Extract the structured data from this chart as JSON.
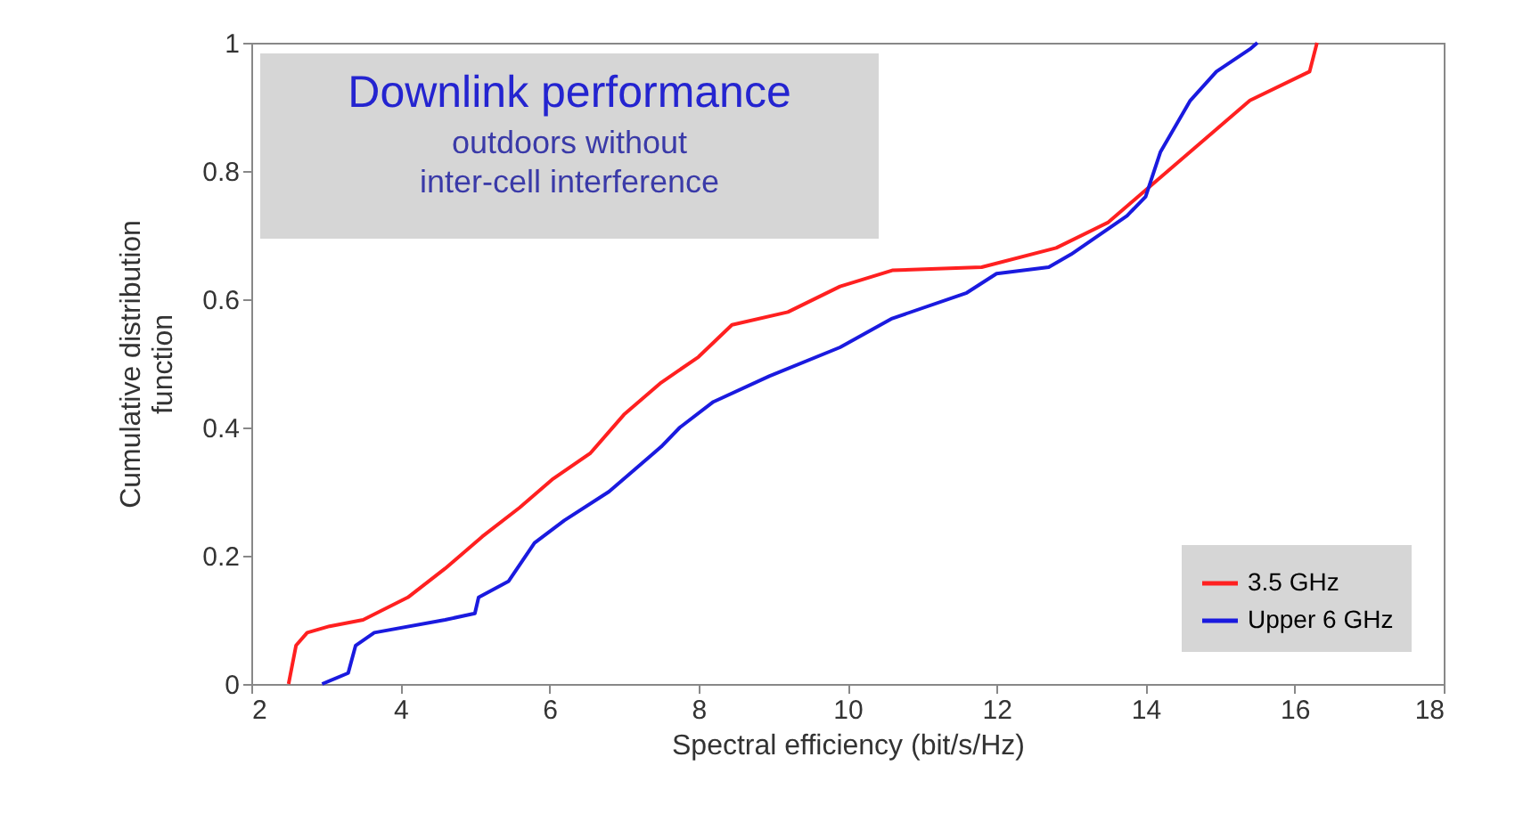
{
  "chart_data": {
    "type": "line",
    "title": "Downlink performance",
    "subtitle": "outdoors without\ninter-cell interference",
    "xlabel": "Spectral efficiency (bit/s/Hz)",
    "ylabel": "Cumulative distribution function",
    "xlim": [
      2,
      18
    ],
    "xticks": [
      2,
      4,
      6,
      8,
      10,
      12,
      14,
      16,
      18
    ],
    "ylim": [
      0,
      1
    ],
    "yticks": [
      0,
      0.2,
      0.4,
      0.6,
      0.8,
      1
    ],
    "grid": false,
    "legend": "bottom right",
    "marker": "none",
    "line_style": "solid",
    "series": [
      {
        "name": "3.5 GHz",
        "color": "#ff2020",
        "x": [
          2.5,
          2.6,
          2.75,
          3.05,
          3.5,
          4.1,
          4.6,
          5.1,
          5.6,
          6.05,
          6.55,
          7.0,
          7.5,
          8.0,
          8.45,
          9.2,
          9.9,
          10.6,
          11.8,
          12.8,
          13.5,
          14.0,
          14.9,
          15.4,
          16.2,
          16.3
        ],
        "values": [
          0,
          0.06,
          0.08,
          0.09,
          0.1,
          0.135,
          0.18,
          0.23,
          0.275,
          0.32,
          0.36,
          0.42,
          0.47,
          0.51,
          0.56,
          0.58,
          0.62,
          0.645,
          0.65,
          0.68,
          0.72,
          0.77,
          0.86,
          0.91,
          0.955,
          1
        ]
      },
      {
        "name": "Upper 6 GHz",
        "color": "#1a1adf",
        "x": [
          2.95,
          3.3,
          3.4,
          3.65,
          4.6,
          5.0,
          5.05,
          5.45,
          5.8,
          6.2,
          6.8,
          7.5,
          7.75,
          8.2,
          8.95,
          9.9,
          10.6,
          11.6,
          12.0,
          12.7,
          13.0,
          13.75,
          14.0,
          14.2,
          14.6,
          14.95,
          15.4,
          15.5
        ],
        "values": [
          0,
          0.017,
          0.06,
          0.08,
          0.1,
          0.11,
          0.135,
          0.16,
          0.22,
          0.255,
          0.3,
          0.37,
          0.4,
          0.44,
          0.48,
          0.525,
          0.57,
          0.61,
          0.64,
          0.65,
          0.67,
          0.73,
          0.76,
          0.83,
          0.91,
          0.955,
          0.99,
          1
        ]
      }
    ]
  }
}
